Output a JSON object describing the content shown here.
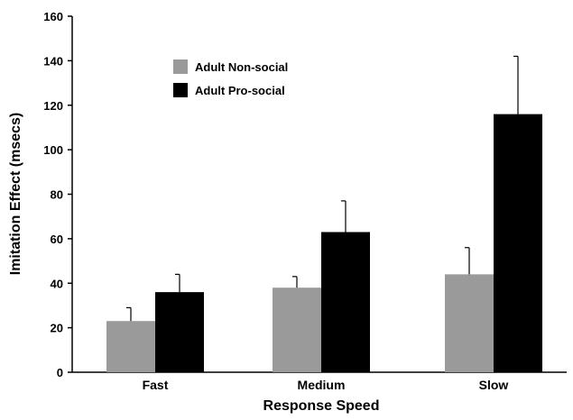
{
  "chart_data": {
    "type": "bar",
    "title": "",
    "xlabel": "Response Speed",
    "ylabel": "Imitation Effect (msecs)",
    "ylim": [
      0,
      160
    ],
    "yticks": [
      0,
      20,
      40,
      60,
      80,
      100,
      120,
      140,
      160
    ],
    "categories": [
      "Fast",
      "Medium",
      "Slow"
    ],
    "grid": false,
    "legend_position": "top-left",
    "series": [
      {
        "name": "Adult Non-social",
        "color": "#9a9a9a",
        "values": [
          23,
          38,
          44
        ],
        "errors": [
          6,
          5,
          12
        ]
      },
      {
        "name": "Adult Pro-social",
        "color": "#000000",
        "values": [
          36,
          63,
          116
        ],
        "errors": [
          8,
          14,
          26
        ]
      }
    ]
  }
}
